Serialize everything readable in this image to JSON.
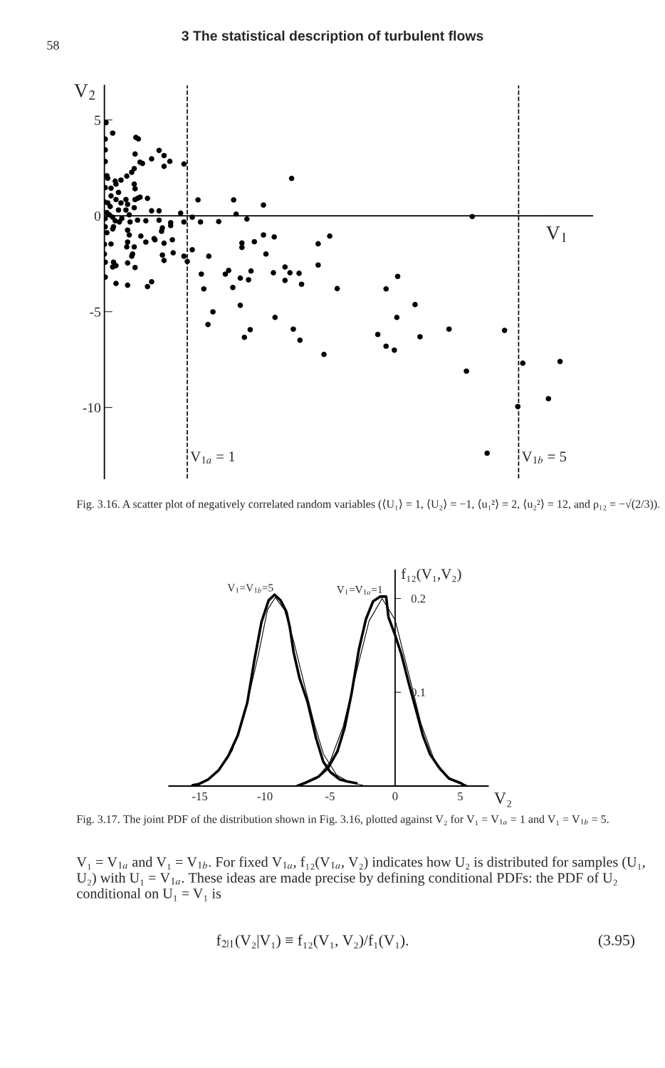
{
  "chart_data": [
    {
      "type": "scatter",
      "title": "3 The statistical description of turbulent flows",
      "xlabel": "V$_{1}$",
      "ylabel": "V$_{2}$",
      "annotations": [
        "58",
        "Fig. 3.16. A scatter plot of negatively correlated random variables (⟨U₁⟩ = 1, ⟨U₂⟩ = −1, ⟨u₁²⟩ = 2, ⟨u₂²⟩ = 12, and ρ₁₂ = −√(2/3))."
      ],
      "xlim": [
        0,
        5.9
      ],
      "ylim": [
        -13.7,
        6.8
      ],
      "yticks": [
        5,
        0,
        -5,
        -10
      ],
      "tick_labels": "y",
      "grid": false,
      "marker": "circle",
      "ref_lines": [
        {
          "axis": "y",
          "value": 0,
          "color": "#000000",
          "line_style": "solid"
        },
        {
          "axis": "x",
          "value": 1,
          "label": "V$_{1a}$ = 1",
          "color": "#000000",
          "line_style": "dashed"
        },
        {
          "axis": "x",
          "value": 5,
          "label": "V$_{1b}$ = 5",
          "color": "#000000",
          "line_style": "dashed"
        }
      ],
      "series": [
        {
          "color": "#000000",
          "x": [
            0.02,
            0.01,
            0.1,
            0.01,
            0.01,
            0.38,
            0.41,
            0.37,
            0.43,
            0.46,
            0.57,
            0.66,
            0.72,
            0.79,
            0.72,
            0.96,
            0.03,
            0.04,
            0.13,
            0.14,
            0.2,
            0.27,
            0.33,
            0.36,
            0.36,
            0.37,
            0.01,
            0.08,
            0.0,
            0.08,
            0.17,
            0.14,
            0.04,
            0.07,
            0.2,
            0.26,
            0.28,
            0.37,
            0.4,
            0.43,
            0.52,
            1.13,
            0.36,
            0.26,
            0.17,
            0.03,
            0.06,
            0.01,
            0.1,
            0.21,
            0.3,
            0.13,
            0.18,
            0.31,
            0.4,
            0.5,
            0.57,
            0.66,
            0.66,
            0.8,
            0.92,
            0.96,
            1.06,
            1.16,
            0.11,
            0.1,
            0.01,
            0.03,
            0.28,
            0.3,
            0.44,
            0.5,
            0.6,
            0.61,
            0.7,
            0.69,
            0.8,
            0.82,
            0.72,
            0.0,
            0.08,
            0.28,
            0.27,
            0.36,
            0.34,
            0.33,
            0.0,
            0.01,
            0.11,
            0.1,
            0.14,
            0.28,
            0.37,
            0.7,
            0.72,
            0.83,
            0.96,
            1.0,
            1.06,
            1.26,
            1.17,
            1.2,
            0.01,
            0.14,
            0.28,
            0.52,
            0.57,
            1.31,
            1.25,
            1.46,
            1.5,
            1.64,
            1.55,
            1.74,
            1.77,
            1.64,
            1.69,
            1.76,
            2.04,
            2.18,
            2.06,
            2.24,
            2.35,
            2.38,
            2.28,
            2.36,
            2.65,
            2.81,
            1.38,
            1.56,
            1.59,
            1.72,
            1.92,
            2.26,
            1.92,
            2.05,
            1.66,
            1.66,
            1.81,
            1.95,
            2.58,
            2.72,
            2.58,
            2.18,
            4.44,
            3.54,
            3.4,
            3.75,
            3.53,
            3.3,
            3.4,
            3.5,
            3.81,
            4.16,
            4.83,
            4.37,
            5.05,
            5.5,
            5.36,
            4.99,
            4.62
          ],
          "values": [
            4.86,
            4.0,
            4.31,
            3.44,
            2.83,
            4.09,
            4.01,
            3.22,
            2.8,
            2.73,
            2.97,
            3.41,
            3.14,
            2.84,
            2.58,
            2.7,
            2.09,
            1.96,
            1.81,
            1.65,
            1.86,
            2.07,
            2.27,
            2.46,
            1.65,
            1.41,
            1.47,
            1.44,
            0.73,
            1.04,
            1.22,
            0.85,
            0.67,
            0.48,
            0.67,
            0.85,
            0.6,
            0.85,
            0.91,
            0.97,
            0.91,
            0.83,
            0.42,
            0.3,
            0.3,
            0.17,
            0.05,
            -0.14,
            -0.07,
            -0.14,
            0.05,
            -0.26,
            -0.32,
            -0.32,
            -0.23,
            -0.26,
            0.26,
            0.26,
            -0.23,
            -0.36,
            0.14,
            -0.32,
            -0.07,
            -0.32,
            -0.57,
            -0.69,
            -0.57,
            -0.88,
            -0.75,
            -1.0,
            -1.06,
            -1.37,
            -1.19,
            -1.25,
            -0.63,
            -0.81,
            -0.51,
            -1.25,
            -1.43,
            -1.49,
            -1.47,
            -1.37,
            -1.62,
            -1.62,
            -1.99,
            -2.11,
            -1.99,
            -2.42,
            -2.42,
            -2.67,
            -2.6,
            -2.46,
            -2.7,
            -2.05,
            -2.33,
            -1.93,
            -2.11,
            -2.38,
            -1.77,
            -2.11,
            -3.04,
            -3.81,
            -3.2,
            -3.53,
            -3.62,
            -3.69,
            -3.44,
            -5.01,
            -5.67,
            -3.04,
            -2.85,
            -3.25,
            -3.74,
            -3.34,
            -2.88,
            -4.67,
            -6.34,
            -5.94,
            -2.97,
            -3.37,
            -5.3,
            -2.97,
            -3.0,
            -3.57,
            -5.91,
            -6.49,
            -7.23,
            -3.8,
            -0.3,
            0.83,
            0.09,
            -0.17,
            0.56,
            1.95,
            -1.0,
            -1.1,
            -1.42,
            -1.65,
            -1.35,
            -1.99,
            -1.46,
            -1.06,
            -2.57,
            -2.67,
            -0.04,
            -3.16,
            -3.81,
            -4.63,
            -5.3,
            -6.19,
            -6.8,
            -7.01,
            -6.31,
            -5.91,
            -5.98,
            -8.1,
            -7.69,
            -7.6,
            -9.54,
            -9.95,
            -12.38
          ]
        }
      ]
    },
    {
      "type": "line",
      "xlabel": "V₂",
      "ylabel": "f₁₂(V₁,V₂)",
      "annotations": [
        "Fig. 3.17. The joint PDF of the distribution shown in Fig. 3.16, plotted against V₂ for V₁ = V$_{1a}$ = 1 and V₁ = V$_{1b}$ = 5.",
        "V₁ = V$_{1a}$ and V₁ = V$_{1b}$. For fixed V$_{1a}$, f₁₂(V$_{1a}$, V₂) indicates how U₂ is distributed for samples (U₁, U₂) with U₁ = V$_{1a}$. These ideas are made precise by defining conditional PDFs: the PDF of U₂ conditional on U₁ = V₁ is",
        "f$_{2|1}$(V₂|V₁) ≡ f₁₂(V₁, V₂)/f₁(V₁).",
        "(3.95)",
        {
          "text": "V$_{1}$=V$_{1b}$=5",
          "x": -9.26,
          "y": 0.204
        },
        {
          "text": "V$_{1}$=V$_{1a}$=1",
          "x": -0.87,
          "y": 0.202
        }
      ],
      "xlim": [
        -17.37,
        7.14
      ],
      "ylim": [
        0,
        0.23
      ],
      "xticks": [
        -15,
        -10,
        -5,
        0,
        5
      ],
      "yticks": [
        0.1,
        0.2
      ],
      "grid": false,
      "marker": "none",
      "line_style": "solid",
      "series": [
        {
          "color": "#000000",
          "x": [
            -15.55,
            -15.09,
            -14.36,
            -13.54,
            -12.81,
            -12.08,
            -11.35,
            -10.81,
            -10.26,
            -9.71,
            -9.26,
            -8.8,
            -8.35,
            -8.07,
            -7.8,
            -7.34,
            -6.71,
            -6.07,
            -5.52,
            -4.98,
            -4.25,
            -3.7,
            -2.97
          ],
          "values": [
            0.001,
            0.002,
            0.007,
            0.017,
            0.032,
            0.054,
            0.089,
            0.134,
            0.175,
            0.198,
            0.204,
            0.198,
            0.186,
            0.168,
            0.143,
            0.115,
            0.089,
            0.051,
            0.026,
            0.015,
            0.007,
            0.005,
            0.003
          ]
        },
        {
          "color": "#000000",
          "x": [
            -15.5,
            -14.5,
            -13.5,
            -12.5,
            -11.5,
            -10.5,
            -9.8,
            -9.2,
            -8.5,
            -7.8,
            -7.0,
            -6.2,
            -5.5,
            -4.5,
            -3.5,
            -2.5
          ],
          "values": [
            0.001,
            0.006,
            0.017,
            0.038,
            0.08,
            0.14,
            0.188,
            0.201,
            0.188,
            0.155,
            0.11,
            0.066,
            0.034,
            0.012,
            0.004,
            0.001
          ]
        },
        {
          "color": "#000000",
          "x": [
            -7.53,
            -6.98,
            -5.89,
            -5.16,
            -4.43,
            -3.88,
            -3.34,
            -2.79,
            -2.24,
            -1.69,
            -1.15,
            -0.69,
            -0.51,
            -0.05,
            0.49,
            1.04,
            1.59,
            2.13,
            2.68,
            3.41,
            4.14,
            5.05,
            5.41
          ],
          "values": [
            0.0,
            0.003,
            0.01,
            0.019,
            0.037,
            0.062,
            0.099,
            0.145,
            0.178,
            0.197,
            0.202,
            0.202,
            0.18,
            0.163,
            0.14,
            0.11,
            0.082,
            0.054,
            0.034,
            0.019,
            0.008,
            0.003,
            0.0
          ]
        },
        {
          "color": "#000000",
          "x": [
            -7.0,
            -6.0,
            -5.0,
            -4.0,
            -3.0,
            -2.0,
            -1.0,
            0.0,
            1.0,
            2.0,
            3.0,
            4.0,
            5.0,
            5.5
          ],
          "values": [
            0.002,
            0.008,
            0.026,
            0.063,
            0.12,
            0.176,
            0.2,
            0.177,
            0.122,
            0.066,
            0.028,
            0.01,
            0.003,
            0.001
          ]
        }
      ]
    }
  ]
}
